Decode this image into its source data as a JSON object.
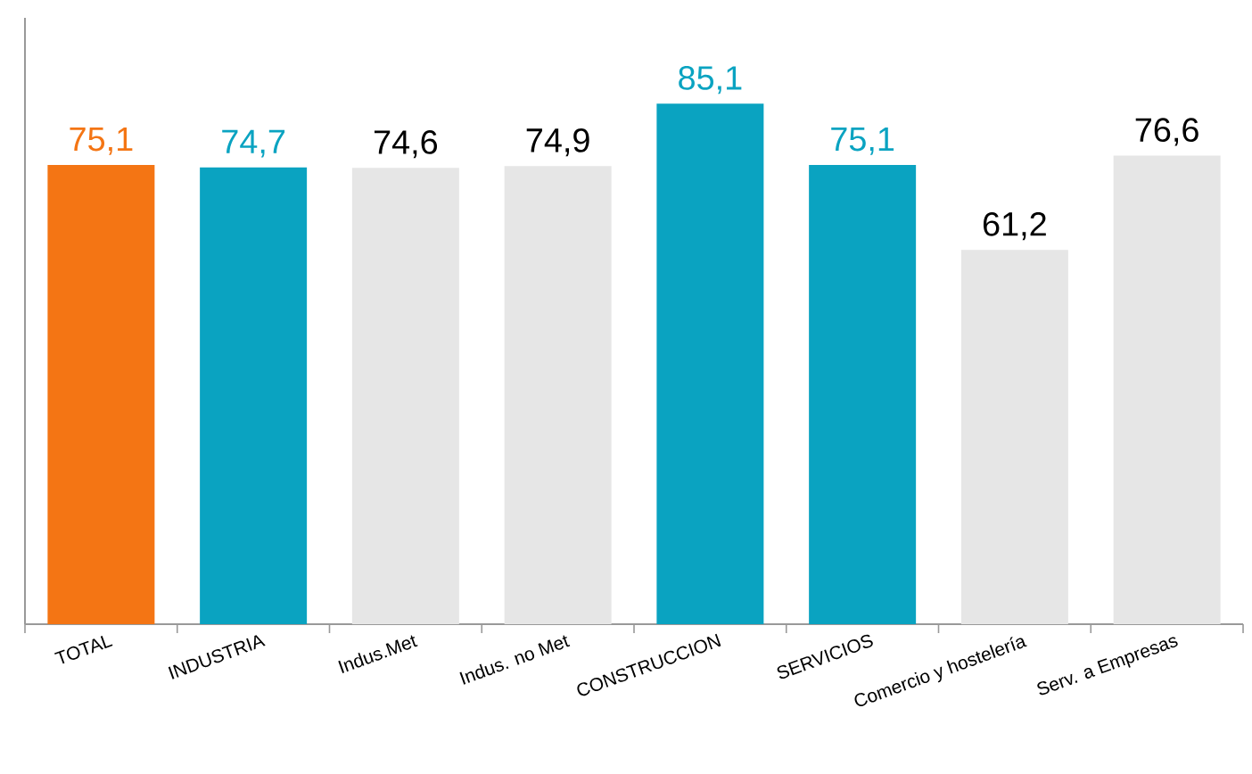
{
  "chart_data": {
    "type": "bar",
    "categories": [
      "TOTAL",
      "INDUSTRIA",
      "Indus.Met",
      "Indus. no Met",
      "CONSTRUCCION",
      "SERVICIOS",
      "Comercio y hostelería",
      "Serv. a Empresas"
    ],
    "values": [
      75.1,
      74.7,
      74.6,
      74.9,
      85.1,
      75.1,
      61.2,
      76.6
    ],
    "value_labels": [
      "75,1",
      "74,7",
      "74,6",
      "74,9",
      "85,1",
      "75,1",
      "61,2",
      "76,6"
    ],
    "colors": [
      "#f47514",
      "#0aa3c1",
      "#e6e6e6",
      "#e6e6e6",
      "#0aa3c1",
      "#0aa3c1",
      "#e6e6e6",
      "#e6e6e6"
    ]
  }
}
